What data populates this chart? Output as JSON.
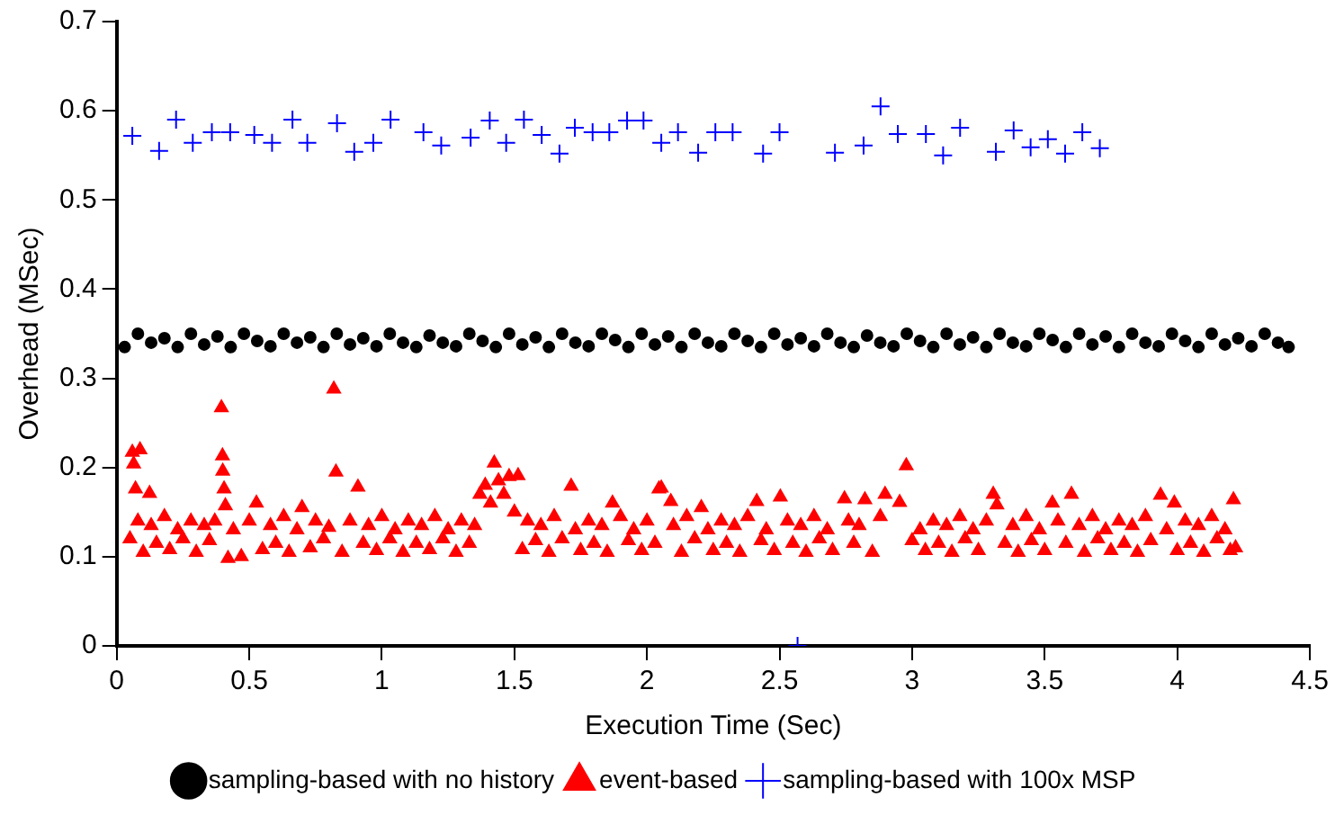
{
  "chart_data": {
    "type": "scatter",
    "xlabel": "Execution Time (Sec)",
    "ylabel": "Overhead (MSec)",
    "xlim": [
      0,
      4.5
    ],
    "xticks": [
      0,
      0.5,
      1,
      1.5,
      2,
      2.5,
      3,
      3.5,
      4,
      4.5
    ],
    "ylim": [
      0,
      0.7
    ],
    "yticks": [
      0,
      0.1,
      0.2,
      0.3,
      0.4,
      0.5,
      0.6,
      0.7
    ],
    "grid": false,
    "legend": "bottom",
    "series": [
      {
        "name": "sampling-based with no history",
        "color": "#000000",
        "marker": "circle",
        "x": [
          0.03,
          0.08,
          0.13,
          0.18,
          0.23,
          0.28,
          0.33,
          0.38,
          0.43,
          0.48,
          0.53,
          0.58,
          0.63,
          0.68,
          0.73,
          0.78,
          0.83,
          0.88,
          0.93,
          0.98,
          1.03,
          1.08,
          1.13,
          1.18,
          1.23,
          1.28,
          1.33,
          1.38,
          1.43,
          1.48,
          1.53,
          1.58,
          1.63,
          1.68,
          1.73,
          1.78,
          1.83,
          1.88,
          1.93,
          1.98,
          2.03,
          2.08,
          2.13,
          2.18,
          2.23,
          2.28,
          2.33,
          2.38,
          2.43,
          2.48,
          2.53,
          2.58,
          2.63,
          2.68,
          2.73,
          2.78,
          2.83,
          2.88,
          2.93,
          2.98,
          3.03,
          3.08,
          3.13,
          3.18,
          3.23,
          3.28,
          3.33,
          3.38,
          3.43,
          3.48,
          3.53,
          3.58,
          3.63,
          3.68,
          3.73,
          3.78,
          3.83,
          3.88,
          3.93,
          3.98,
          4.03,
          4.08,
          4.13,
          4.18,
          4.23,
          4.28,
          4.33,
          4.38,
          4.42
        ],
        "values": [
          0.335,
          0.35,
          0.34,
          0.345,
          0.335,
          0.35,
          0.338,
          0.347,
          0.335,
          0.35,
          0.342,
          0.336,
          0.35,
          0.34,
          0.346,
          0.335,
          0.35,
          0.338,
          0.345,
          0.336,
          0.35,
          0.34,
          0.335,
          0.348,
          0.34,
          0.336,
          0.35,
          0.342,
          0.335,
          0.35,
          0.338,
          0.346,
          0.335,
          0.35,
          0.34,
          0.336,
          0.35,
          0.343,
          0.335,
          0.35,
          0.338,
          0.347,
          0.335,
          0.35,
          0.34,
          0.336,
          0.35,
          0.342,
          0.335,
          0.35,
          0.338,
          0.345,
          0.336,
          0.35,
          0.34,
          0.335,
          0.348,
          0.34,
          0.336,
          0.35,
          0.342,
          0.335,
          0.35,
          0.338,
          0.346,
          0.335,
          0.35,
          0.34,
          0.336,
          0.35,
          0.343,
          0.335,
          0.35,
          0.338,
          0.347,
          0.335,
          0.35,
          0.34,
          0.336,
          0.35,
          0.342,
          0.335,
          0.35,
          0.338,
          0.345,
          0.336,
          0.35,
          0.34,
          0.335
        ]
      },
      {
        "name": "event-based",
        "color": "#ff0000",
        "marker": "triangle",
        "x": [
          0.059,
          0.088,
          0.064,
          0.071,
          0.124,
          0.05,
          0.08,
          0.1,
          0.13,
          0.15,
          0.18,
          0.2,
          0.23,
          0.25,
          0.28,
          0.3,
          0.33,
          0.35,
          0.37,
          0.395,
          0.399,
          0.4,
          0.405,
          0.41,
          0.42,
          0.44,
          0.47,
          0.5,
          0.527,
          0.55,
          0.58,
          0.6,
          0.63,
          0.65,
          0.68,
          0.699,
          0.73,
          0.75,
          0.78,
          0.8,
          0.819,
          0.827,
          0.85,
          0.88,
          0.91,
          0.93,
          0.95,
          0.98,
          1.0,
          1.03,
          1.05,
          1.08,
          1.1,
          1.13,
          1.15,
          1.18,
          1.2,
          1.23,
          1.25,
          1.28,
          1.3,
          1.33,
          1.35,
          1.37,
          1.39,
          1.41,
          1.424,
          1.44,
          1.46,
          1.48,
          1.5,
          1.514,
          1.53,
          1.55,
          1.58,
          1.6,
          1.63,
          1.65,
          1.68,
          1.714,
          1.73,
          1.75,
          1.78,
          1.8,
          1.83,
          1.85,
          1.87,
          1.9,
          1.93,
          1.95,
          1.98,
          2.0,
          2.03,
          2.045,
          2.054,
          2.09,
          2.1,
          2.13,
          2.15,
          2.18,
          2.205,
          2.23,
          2.25,
          2.28,
          2.3,
          2.33,
          2.35,
          2.38,
          2.414,
          2.43,
          2.45,
          2.48,
          2.503,
          2.53,
          2.55,
          2.58,
          2.6,
          2.63,
          2.65,
          2.68,
          2.7,
          2.745,
          2.76,
          2.78,
          2.8,
          2.822,
          2.85,
          2.88,
          2.898,
          2.953,
          2.978,
          3.0,
          3.03,
          3.05,
          3.08,
          3.1,
          3.13,
          3.15,
          3.18,
          3.2,
          3.23,
          3.25,
          3.28,
          3.306,
          3.32,
          3.35,
          3.38,
          3.4,
          3.43,
          3.45,
          3.48,
          3.5,
          3.529,
          3.55,
          3.58,
          3.601,
          3.63,
          3.65,
          3.68,
          3.7,
          3.73,
          3.75,
          3.78,
          3.8,
          3.83,
          3.85,
          3.88,
          3.9,
          3.937,
          3.96,
          3.989,
          4.0,
          4.03,
          4.05,
          4.08,
          4.1,
          4.13,
          4.15,
          4.18,
          4.2,
          4.212,
          4.22
        ],
        "values": [
          0.217,
          0.22,
          0.204,
          0.176,
          0.171,
          0.12,
          0.14,
          0.105,
          0.135,
          0.115,
          0.145,
          0.108,
          0.13,
          0.12,
          0.14,
          0.105,
          0.135,
          0.118,
          0.14,
          0.267,
          0.213,
          0.196,
          0.176,
          0.157,
          0.098,
          0.13,
          0.1,
          0.14,
          0.16,
          0.108,
          0.135,
          0.115,
          0.145,
          0.105,
          0.13,
          0.155,
          0.11,
          0.14,
          0.12,
          0.133,
          0.288,
          0.195,
          0.105,
          0.14,
          0.178,
          0.115,
          0.135,
          0.107,
          0.145,
          0.12,
          0.13,
          0.105,
          0.14,
          0.115,
          0.135,
          0.108,
          0.145,
          0.12,
          0.13,
          0.105,
          0.14,
          0.115,
          0.135,
          0.17,
          0.18,
          0.16,
          0.205,
          0.185,
          0.17,
          0.19,
          0.15,
          0.191,
          0.108,
          0.14,
          0.118,
          0.135,
          0.105,
          0.145,
          0.12,
          0.179,
          0.13,
          0.107,
          0.14,
          0.115,
          0.135,
          0.105,
          0.16,
          0.145,
          0.118,
          0.13,
          0.107,
          0.14,
          0.115,
          0.176,
          0.177,
          0.162,
          0.135,
          0.105,
          0.145,
          0.12,
          0.155,
          0.13,
          0.107,
          0.14,
          0.115,
          0.135,
          0.105,
          0.145,
          0.162,
          0.118,
          0.13,
          0.107,
          0.167,
          0.14,
          0.115,
          0.135,
          0.105,
          0.145,
          0.12,
          0.13,
          0.107,
          0.165,
          0.14,
          0.115,
          0.135,
          0.164,
          0.105,
          0.145,
          0.17,
          0.161,
          0.202,
          0.118,
          0.13,
          0.107,
          0.14,
          0.115,
          0.135,
          0.105,
          0.145,
          0.12,
          0.13,
          0.107,
          0.14,
          0.17,
          0.158,
          0.115,
          0.135,
          0.105,
          0.145,
          0.118,
          0.13,
          0.107,
          0.16,
          0.14,
          0.115,
          0.17,
          0.135,
          0.105,
          0.145,
          0.12,
          0.13,
          0.107,
          0.14,
          0.115,
          0.135,
          0.105,
          0.145,
          0.118,
          0.169,
          0.13,
          0.16,
          0.107,
          0.14,
          0.115,
          0.135,
          0.105,
          0.145,
          0.12,
          0.13,
          0.107,
          0.164,
          0.11
        ]
      },
      {
        "name": "sampling-based with 100x MSP",
        "color": "#0000ff",
        "marker": "cross",
        "x": [
          0.059,
          0.16,
          0.224,
          0.287,
          0.359,
          0.428,
          0.519,
          0.586,
          0.663,
          0.719,
          0.831,
          0.896,
          0.968,
          1.033,
          1.157,
          1.224,
          1.335,
          1.407,
          1.469,
          1.536,
          1.603,
          1.67,
          1.728,
          1.795,
          1.858,
          1.925,
          1.987,
          2.054,
          2.117,
          2.193,
          2.258,
          2.323,
          2.438,
          2.5,
          2.568,
          2.709,
          2.817,
          2.881,
          2.946,
          3.052,
          3.117,
          3.181,
          3.316,
          3.383,
          3.447,
          3.512,
          3.577,
          3.642,
          3.708
        ],
        "values": [
          0.572,
          0.555,
          0.59,
          0.564,
          0.576,
          0.576,
          0.573,
          0.564,
          0.59,
          0.564,
          0.586,
          0.554,
          0.564,
          0.59,
          0.576,
          0.561,
          0.57,
          0.589,
          0.564,
          0.59,
          0.573,
          0.552,
          0.581,
          0.576,
          0.576,
          0.589,
          0.589,
          0.564,
          0.576,
          0.553,
          0.576,
          0.576,
          0.552,
          0.576,
          0,
          0.553,
          0.561,
          0.605,
          0.574,
          0.574,
          0.55,
          0.581,
          0.554,
          0.578,
          0.559,
          0.568,
          0.552,
          0.576,
          0.558
        ]
      }
    ]
  }
}
